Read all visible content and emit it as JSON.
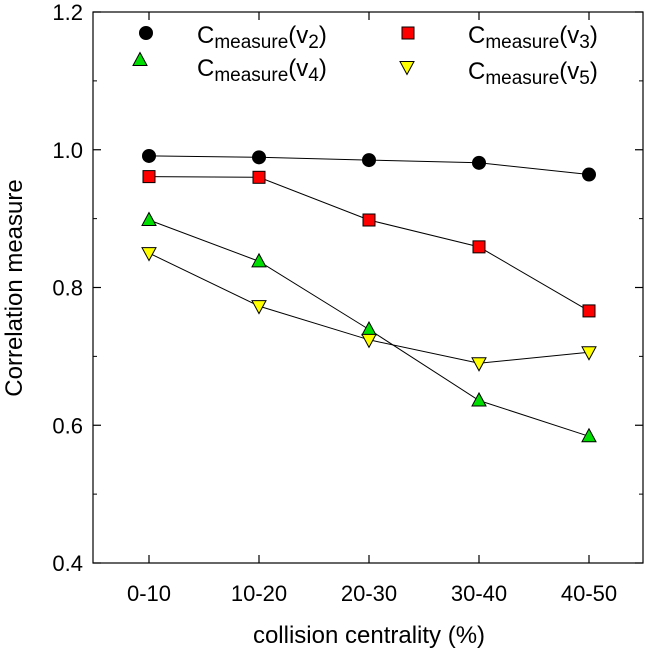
{
  "chart_data": {
    "type": "line",
    "xlabel": "collision centrality (%)",
    "ylabel": "Correlation measure",
    "categories": [
      "0-10",
      "10-20",
      "20-30",
      "30-40",
      "40-50"
    ],
    "ylim": [
      0.4,
      1.2
    ],
    "yticks": [
      "0.4",
      "0.6",
      "0.8",
      "1.0",
      "1.2"
    ],
    "grid": false,
    "legend_placement": "top",
    "series": [
      {
        "name_main": "C",
        "name_sub": "measure",
        "name_arg": "(v",
        "name_arg_sub": "2",
        "name_close": ")",
        "marker": "circle",
        "color": "#000000",
        "values": [
          0.991,
          0.989,
          0.985,
          0.981,
          0.964
        ]
      },
      {
        "name_main": "C",
        "name_sub": "measure",
        "name_arg": "(v",
        "name_arg_sub": "3",
        "name_close": ")",
        "marker": "square",
        "color": "#ff0000",
        "values": [
          0.961,
          0.96,
          0.898,
          0.859,
          0.766
        ]
      },
      {
        "name_main": "C",
        "name_sub": "measure",
        "name_arg": "(v",
        "name_arg_sub": "4",
        "name_close": ")",
        "marker": "triangle-up",
        "color": "#00dd00",
        "values": [
          0.898,
          0.838,
          0.739,
          0.636,
          0.584
        ]
      },
      {
        "name_main": "C",
        "name_sub": "measure",
        "name_arg": "(v",
        "name_arg_sub": "5",
        "name_close": ")",
        "marker": "triangle-down",
        "color": "#ffff00",
        "values": [
          0.85,
          0.773,
          0.724,
          0.69,
          0.706
        ]
      }
    ]
  }
}
